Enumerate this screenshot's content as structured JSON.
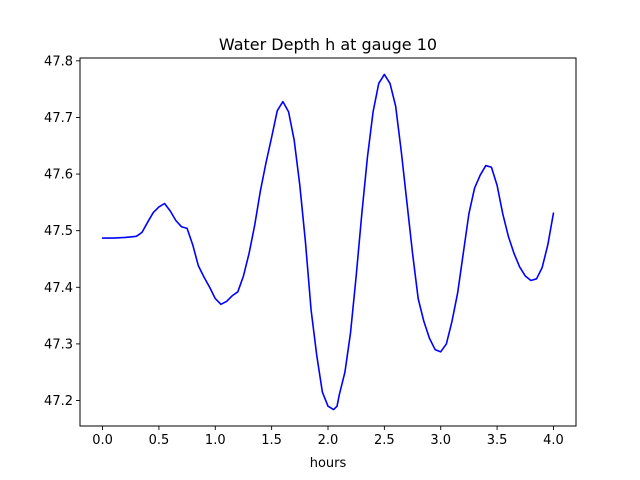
{
  "chart_data": {
    "type": "line",
    "title": "Water Depth h at gauge 10",
    "xlabel": "hours",
    "ylabel": "",
    "xlim": [
      -0.2,
      4.2
    ],
    "ylim": [
      47.155,
      47.805
    ],
    "xticks": [
      0.0,
      0.5,
      1.0,
      1.5,
      2.0,
      2.5,
      3.0,
      3.5,
      4.0
    ],
    "xtick_labels": [
      "0.0",
      "0.5",
      "1.0",
      "1.5",
      "2.0",
      "2.5",
      "3.0",
      "3.5",
      "4.0"
    ],
    "yticks": [
      47.2,
      47.3,
      47.4,
      47.5,
      47.6,
      47.7,
      47.8
    ],
    "ytick_labels": [
      "47.2",
      "47.3",
      "47.4",
      "47.5",
      "47.6",
      "47.7",
      "47.8"
    ],
    "grid": false,
    "series": [
      {
        "color": "#0000ff",
        "x": [
          0.0,
          0.1,
          0.2,
          0.3,
          0.35,
          0.4,
          0.45,
          0.5,
          0.55,
          0.6,
          0.65,
          0.7,
          0.75,
          0.8,
          0.85,
          0.9,
          0.95,
          1.0,
          1.05,
          1.1,
          1.15,
          1.2,
          1.25,
          1.3,
          1.35,
          1.4,
          1.45,
          1.5,
          1.55,
          1.6,
          1.65,
          1.7,
          1.75,
          1.8,
          1.85,
          1.9,
          1.95,
          2.0,
          2.05,
          2.08,
          2.1,
          2.15,
          2.2,
          2.25,
          2.3,
          2.35,
          2.4,
          2.45,
          2.5,
          2.55,
          2.6,
          2.65,
          2.7,
          2.75,
          2.8,
          2.85,
          2.9,
          2.95,
          3.0,
          3.05,
          3.1,
          3.15,
          3.2,
          3.25,
          3.3,
          3.35,
          3.4,
          3.45,
          3.5,
          3.55,
          3.6,
          3.65,
          3.7,
          3.75,
          3.8,
          3.85,
          3.9,
          3.95,
          4.0
        ],
        "y": [
          47.487,
          47.487,
          47.488,
          47.49,
          47.497,
          47.515,
          47.532,
          47.542,
          47.548,
          47.535,
          47.518,
          47.507,
          47.504,
          47.475,
          47.438,
          47.418,
          47.4,
          47.38,
          47.37,
          47.375,
          47.385,
          47.392,
          47.42,
          47.46,
          47.51,
          47.57,
          47.62,
          47.665,
          47.712,
          47.728,
          47.71,
          47.66,
          47.58,
          47.48,
          47.36,
          47.28,
          47.215,
          47.19,
          47.184,
          47.19,
          47.21,
          47.25,
          47.32,
          47.42,
          47.53,
          47.63,
          47.71,
          47.76,
          47.776,
          47.76,
          47.72,
          47.64,
          47.55,
          47.46,
          47.38,
          47.34,
          47.31,
          47.29,
          47.286,
          47.3,
          47.34,
          47.39,
          47.46,
          47.53,
          47.575,
          47.598,
          47.615,
          47.612,
          47.58,
          47.53,
          47.49,
          47.46,
          47.436,
          47.42,
          47.412,
          47.415,
          47.435,
          47.475,
          47.531
        ]
      }
    ]
  }
}
